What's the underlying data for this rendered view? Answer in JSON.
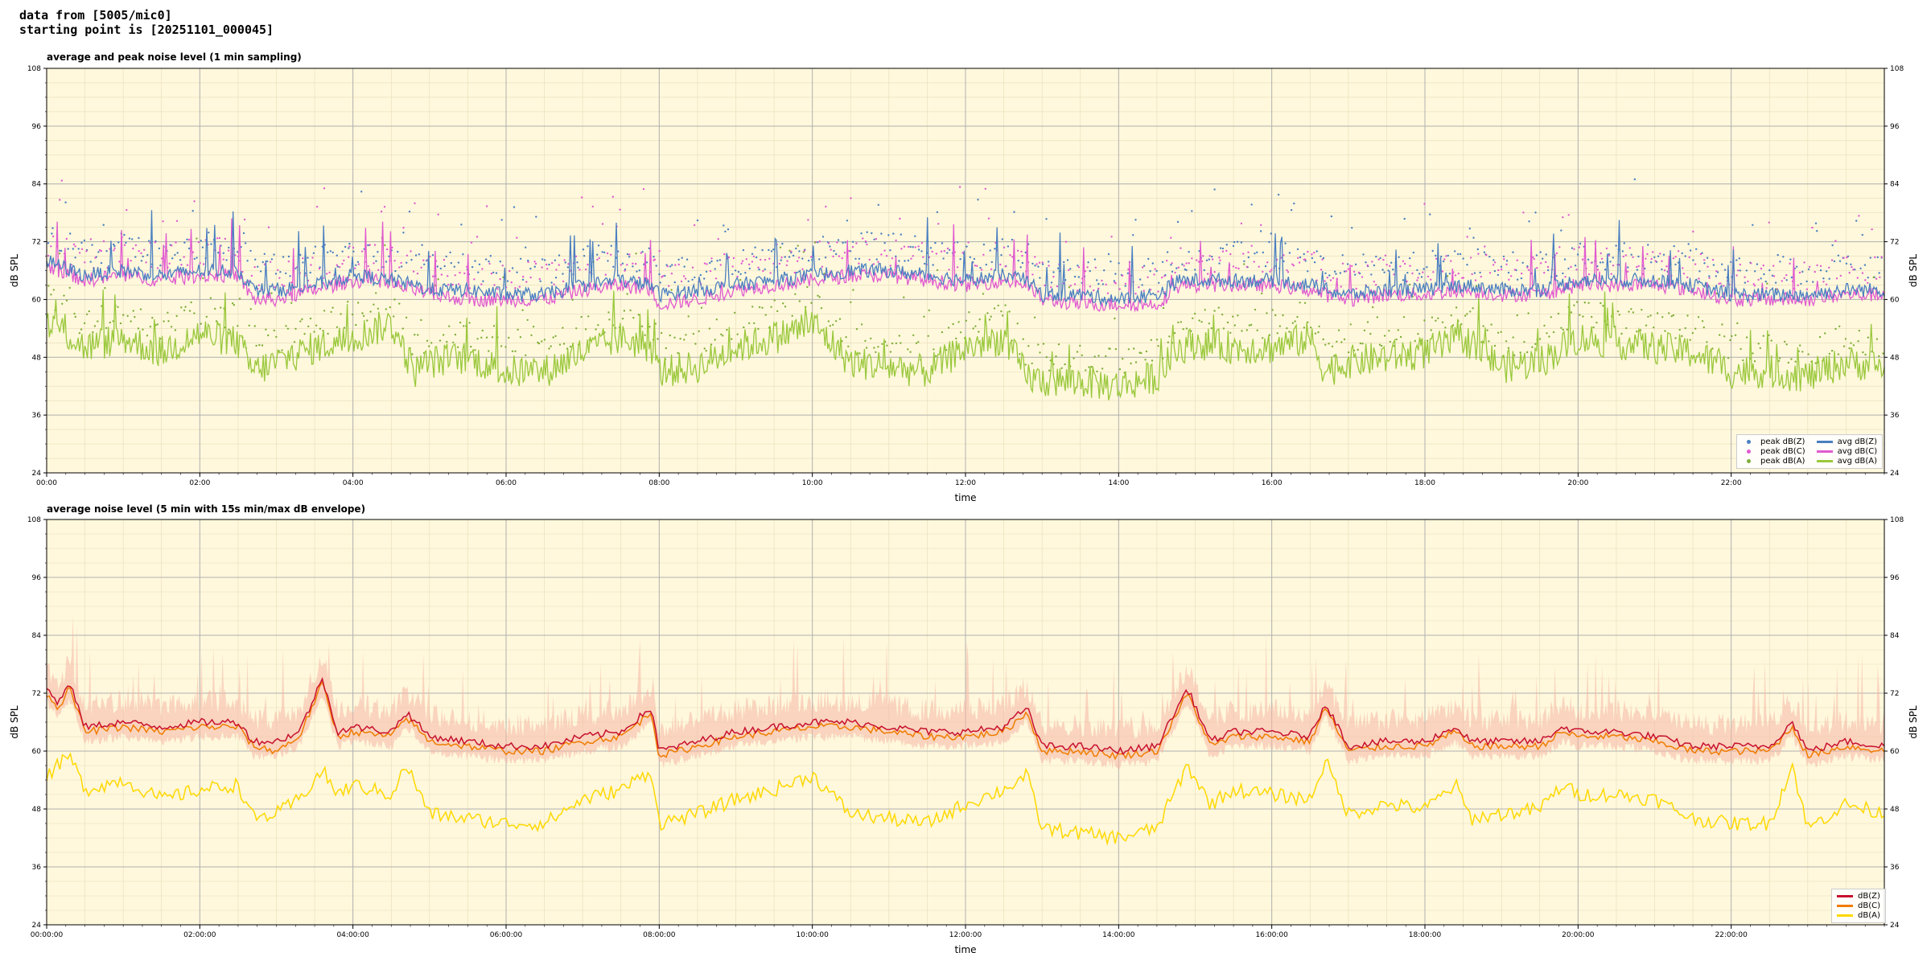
{
  "header": {
    "line1": "data from [5005/mic0]",
    "line2": "starting point is [20251101_000045]"
  },
  "colors": {
    "plot_bg": "#fff8dc",
    "z": "#4a7fc1",
    "c": "#e05ad0",
    "a": "#9ac83c",
    "z2": "#c8102e",
    "c2": "#f07c00",
    "a2": "#ffd800",
    "envelope": "#f5b7a6"
  },
  "chart_data": [
    {
      "type": "line",
      "title": "average and peak noise level (1 min sampling)",
      "xlabel": "time",
      "ylabel": "dB SPL",
      "ylim": [
        24,
        108
      ],
      "xlim_hours": [
        0,
        24
      ],
      "yticks": [
        "24",
        "36",
        "48",
        "60",
        "72",
        "84",
        "96",
        "108"
      ],
      "xtick_labels": [
        "00:00",
        "02:00",
        "04:00",
        "06:00",
        "08:00",
        "10:00",
        "12:00",
        "14:00",
        "16:00",
        "18:00",
        "20:00",
        "22:00"
      ],
      "grid": true,
      "legend_position": "bottom-right",
      "legend": {
        "peak_z": "peak dB(Z)",
        "peak_c": "peak dB(C)",
        "peak_a": "peak dB(A)",
        "avg_z": "avg dB(Z)",
        "avg_c": "avg dB(C)",
        "avg_a": "avg dB(A)"
      },
      "series": [
        {
          "name": "avg dB(Z)",
          "x_hours": [
            0,
            0.5,
            1,
            1.5,
            2,
            2.5,
            2.7,
            3,
            3.5,
            4,
            4.5,
            4.8,
            5,
            5.5,
            6,
            6.5,
            7,
            7.5,
            7.9,
            8,
            8.5,
            9,
            9.5,
            10,
            10.5,
            11,
            11.5,
            12,
            12.5,
            12.8,
            13,
            13.5,
            14,
            14.5,
            14.8,
            15,
            15.5,
            16,
            16.5,
            16.7,
            17,
            17.5,
            18,
            18.5,
            19,
            19.5,
            20,
            20.5,
            21,
            21.5,
            22,
            22.5,
            23,
            23.5,
            24
          ],
          "values": [
            68,
            65,
            66,
            65,
            66,
            66,
            62,
            62,
            63,
            65,
            64,
            63,
            62,
            62,
            61,
            61,
            63,
            64,
            63,
            61,
            62,
            63,
            64,
            65,
            66,
            66,
            65,
            64,
            65,
            64,
            61,
            61,
            60,
            61,
            64,
            64,
            64,
            64,
            63,
            62,
            61,
            62,
            62,
            63,
            62,
            62,
            64,
            64,
            64,
            63,
            61,
            61,
            61,
            62,
            62
          ]
        },
        {
          "name": "avg dB(C)",
          "x_hours": [
            0,
            0.5,
            1,
            1.5,
            2,
            2.5,
            2.7,
            3,
            3.5,
            4,
            4.5,
            4.8,
            5,
            5.5,
            6,
            6.5,
            7,
            7.5,
            7.9,
            8,
            8.5,
            9,
            9.5,
            10,
            10.5,
            11,
            11.5,
            12,
            12.5,
            12.8,
            13,
            13.5,
            14,
            14.5,
            14.8,
            15,
            15.5,
            16,
            16.5,
            16.7,
            17,
            17.5,
            18,
            18.5,
            19,
            19.5,
            20,
            20.5,
            21,
            21.5,
            22,
            22.5,
            23,
            23.5,
            24
          ],
          "values": [
            67,
            64,
            65,
            64,
            65,
            65,
            60,
            60,
            62,
            64,
            63,
            62,
            61,
            60,
            60,
            60,
            62,
            63,
            62,
            59,
            60,
            62,
            63,
            64,
            65,
            65,
            64,
            63,
            64,
            63,
            60,
            59,
            59,
            59,
            63,
            63,
            63,
            63,
            62,
            61,
            60,
            61,
            61,
            62,
            61,
            61,
            63,
            63,
            63,
            62,
            60,
            60,
            60,
            61,
            61
          ]
        },
        {
          "name": "avg dB(A)",
          "x_hours": [
            0,
            0.5,
            1,
            1.5,
            2,
            2.5,
            2.7,
            3,
            3.5,
            4,
            4.5,
            4.8,
            5,
            5.5,
            6,
            6.5,
            7,
            7.5,
            7.9,
            8,
            8.5,
            9,
            9.5,
            10,
            10.5,
            11,
            11.5,
            12,
            12.5,
            12.8,
            13,
            13.5,
            14,
            14.5,
            14.8,
            15,
            15.5,
            16,
            16.5,
            16.7,
            17,
            17.5,
            18,
            18.5,
            19,
            19.5,
            20,
            20.5,
            21,
            21.5,
            22,
            22.5,
            23,
            23.5,
            24
          ],
          "values": [
            56,
            50,
            52,
            49,
            53,
            51,
            45,
            47,
            50,
            52,
            55,
            45,
            47,
            48,
            45,
            45,
            49,
            52,
            50,
            45,
            46,
            50,
            52,
            55,
            47,
            46,
            45,
            50,
            52,
            44,
            43,
            43,
            42,
            44,
            50,
            51,
            50,
            50,
            52,
            45,
            47,
            48,
            49,
            52,
            46,
            47,
            52,
            51,
            50,
            49,
            45,
            45,
            44,
            47,
            46
          ]
        }
      ]
    },
    {
      "type": "line",
      "title": "average noise level (5 min with 15s min/max dB envelope)",
      "xlabel": "time",
      "ylabel": "dB SPL",
      "ylim": [
        24,
        108
      ],
      "xlim_hours": [
        0,
        24
      ],
      "yticks": [
        "24",
        "36",
        "48",
        "60",
        "72",
        "84",
        "96",
        "108"
      ],
      "xtick_labels": [
        "00:00:00",
        "02:00:00",
        "04:00:00",
        "06:00:00",
        "08:00:00",
        "10:00:00",
        "12:00:00",
        "14:00:00",
        "16:00:00",
        "18:00:00",
        "20:00:00",
        "22:00:00"
      ],
      "grid": true,
      "legend_position": "bottom-right",
      "legend": {
        "z": "dB(Z)",
        "c": "dB(C)",
        "a": "dB(A)"
      },
      "series": [
        {
          "name": "dB(Z)",
          "x_hours": [
            0,
            0.15,
            0.3,
            0.5,
            1,
            1.5,
            2,
            2.5,
            2.7,
            3,
            3.3,
            3.6,
            3.8,
            4,
            4.5,
            4.7,
            5,
            5.5,
            6,
            6.5,
            7,
            7.5,
            7.9,
            8,
            8.5,
            9,
            9.5,
            10,
            10.5,
            11,
            11.5,
            12,
            12.5,
            12.8,
            13,
            13.5,
            14,
            14.5,
            14.9,
            15.2,
            15.5,
            16,
            16.5,
            16.7,
            17,
            17.5,
            18,
            18.4,
            18.6,
            19,
            19.5,
            19.8,
            20,
            20.5,
            21,
            21.5,
            22,
            22.5,
            22.8,
            23,
            23.5,
            24
          ],
          "values": [
            73,
            70,
            74,
            65,
            66,
            65,
            66,
            66,
            62,
            62,
            64,
            75,
            64,
            65,
            64,
            68,
            63,
            62,
            61,
            61,
            63,
            64,
            69,
            60,
            62,
            64,
            65,
            66,
            66,
            65,
            64,
            64,
            65,
            69,
            61,
            61,
            60,
            61,
            73,
            62,
            64,
            64,
            63,
            70,
            61,
            62,
            62,
            65,
            62,
            62,
            62,
            65,
            64,
            64,
            63,
            61,
            61,
            61,
            66,
            60,
            62,
            61
          ]
        },
        {
          "name": "dB(C)",
          "x_hours": [
            0,
            0.15,
            0.3,
            0.5,
            1,
            1.5,
            2,
            2.5,
            2.7,
            3,
            3.3,
            3.6,
            3.8,
            4,
            4.5,
            4.7,
            5,
            5.5,
            6,
            6.5,
            7,
            7.5,
            7.9,
            8,
            8.5,
            9,
            9.5,
            10,
            10.5,
            11,
            11.5,
            12,
            12.5,
            12.8,
            13,
            13.5,
            14,
            14.5,
            14.9,
            15.2,
            15.5,
            16,
            16.5,
            16.7,
            17,
            17.5,
            18,
            18.4,
            18.6,
            19,
            19.5,
            19.8,
            20,
            20.5,
            21,
            21.5,
            22,
            22.5,
            22.8,
            23,
            23.5,
            24
          ],
          "values": [
            72,
            69,
            73,
            64,
            65,
            64,
            65,
            65,
            61,
            60,
            63,
            74,
            63,
            64,
            63,
            67,
            62,
            61,
            60,
            60,
            62,
            63,
            68,
            59,
            61,
            63,
            64,
            65,
            65,
            64,
            63,
            63,
            64,
            68,
            60,
            60,
            59,
            60,
            72,
            61,
            63,
            63,
            62,
            69,
            60,
            61,
            61,
            64,
            61,
            61,
            61,
            64,
            63,
            63,
            62,
            60,
            60,
            60,
            65,
            59,
            61,
            60
          ]
        },
        {
          "name": "dB(A)",
          "x_hours": [
            0,
            0.15,
            0.3,
            0.5,
            1,
            1.5,
            2,
            2.5,
            2.7,
            3,
            3.3,
            3.6,
            3.8,
            4,
            4.5,
            4.7,
            5,
            5.5,
            6,
            6.5,
            7,
            7.5,
            7.9,
            8,
            8.5,
            9,
            9.5,
            10,
            10.5,
            11,
            11.5,
            12,
            12.5,
            12.8,
            13,
            13.5,
            14,
            14.5,
            14.9,
            15.2,
            15.5,
            16,
            16.5,
            16.7,
            17,
            17.5,
            18,
            18.4,
            18.6,
            19,
            19.5,
            19.8,
            20,
            20.5,
            21,
            21.5,
            22,
            22.5,
            22.8,
            23,
            23.5,
            24
          ],
          "values": [
            55,
            57,
            59,
            52,
            54,
            50,
            52,
            53,
            46,
            47,
            50,
            56,
            51,
            53,
            51,
            57,
            47,
            46,
            45,
            45,
            50,
            52,
            56,
            45,
            47,
            50,
            52,
            55,
            47,
            46,
            45,
            49,
            52,
            55,
            44,
            43,
            42,
            44,
            57,
            49,
            52,
            51,
            50,
            58,
            47,
            49,
            48,
            53,
            46,
            47,
            48,
            53,
            51,
            51,
            50,
            46,
            45,
            45,
            57,
            44,
            49,
            47
          ]
        }
      ]
    }
  ]
}
